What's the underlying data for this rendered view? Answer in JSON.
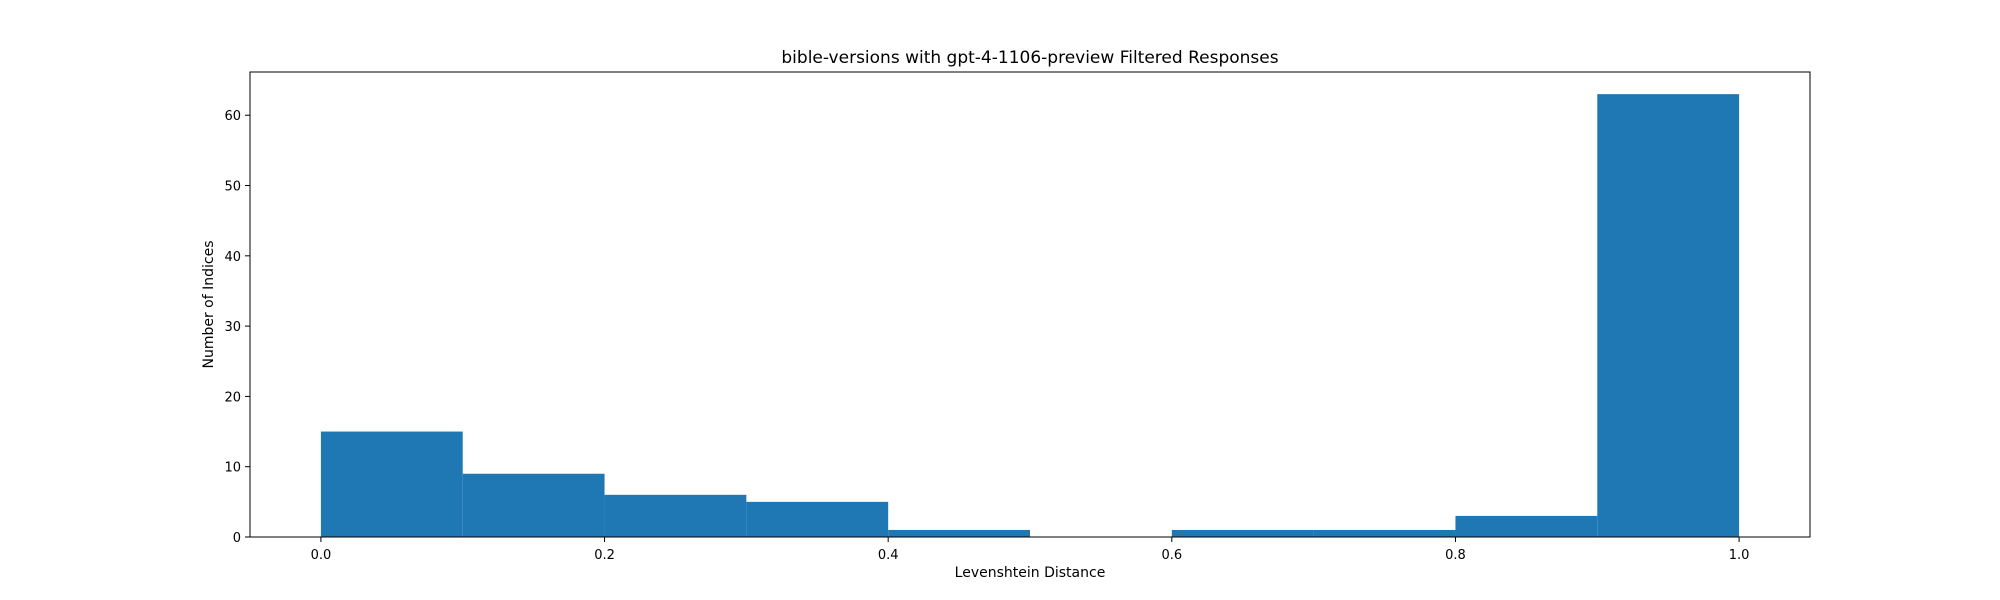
{
  "chart_data": {
    "type": "bar",
    "subtype": "histogram",
    "title": "bible-versions with gpt-4-1106-preview Filtered Responses",
    "xlabel": "Levenshtein Distance",
    "ylabel": "Number of Indices",
    "bins": [
      {
        "start": 0.0,
        "end": 0.1,
        "count": 15
      },
      {
        "start": 0.1,
        "end": 0.2,
        "count": 9
      },
      {
        "start": 0.2,
        "end": 0.3,
        "count": 6
      },
      {
        "start": 0.3,
        "end": 0.4,
        "count": 5
      },
      {
        "start": 0.4,
        "end": 0.5,
        "count": 1
      },
      {
        "start": 0.5,
        "end": 0.6,
        "count": 0
      },
      {
        "start": 0.6,
        "end": 0.7,
        "count": 1
      },
      {
        "start": 0.7,
        "end": 0.8,
        "count": 1
      },
      {
        "start": 0.8,
        "end": 0.9,
        "count": 3
      },
      {
        "start": 0.9,
        "end": 1.0,
        "count": 63
      }
    ],
    "xlim": [
      -0.05,
      1.05
    ],
    "ylim": [
      0,
      66.15
    ],
    "xticks": [
      0.0,
      0.2,
      0.4,
      0.6,
      0.8,
      1.0
    ],
    "xtick_labels": [
      "0.0",
      "0.2",
      "0.4",
      "0.6",
      "0.8",
      "1.0"
    ],
    "yticks": [
      0,
      10,
      20,
      30,
      40,
      50,
      60
    ],
    "ytick_labels": [
      "0",
      "10",
      "20",
      "30",
      "40",
      "50",
      "60"
    ],
    "bar_color": "#1f77b4",
    "grid": false,
    "legend": "none"
  }
}
